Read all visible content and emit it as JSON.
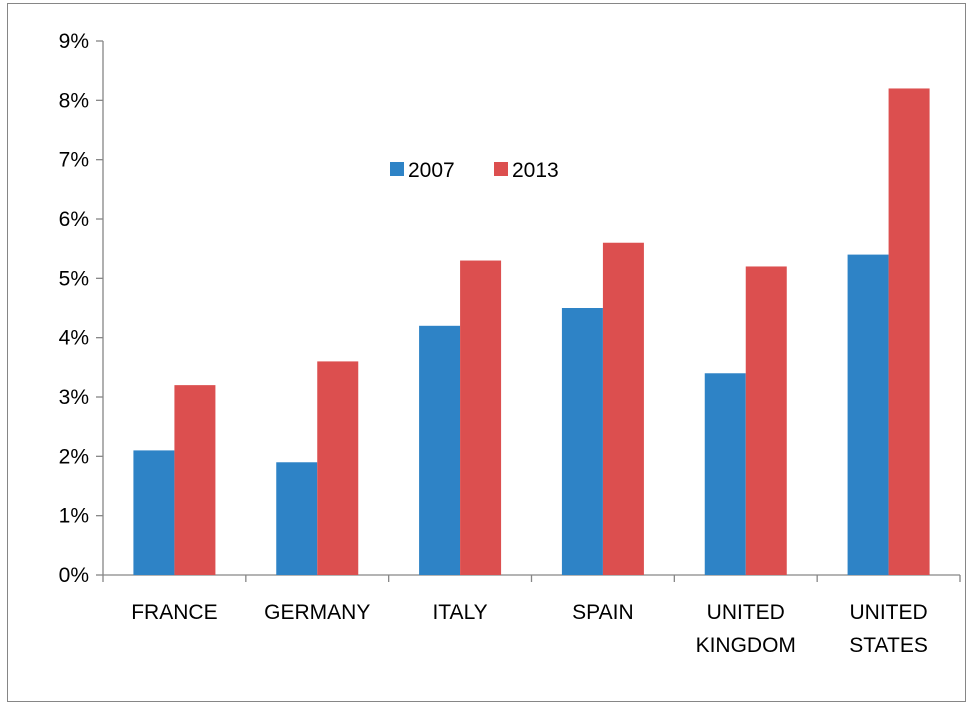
{
  "chart_data": {
    "type": "bar",
    "title": "",
    "xlabel": "",
    "ylabel": "",
    "categories": [
      [
        "FRANCE"
      ],
      [
        "GERMANY"
      ],
      [
        "ITALY"
      ],
      [
        "SPAIN"
      ],
      [
        "UNITED",
        "KINGDOM"
      ],
      [
        "UNITED",
        "STATES"
      ]
    ],
    "series": [
      {
        "name": "2007",
        "color": "#2e83c6",
        "values": [
          2.1,
          1.9,
          4.2,
          4.5,
          3.4,
          5.4
        ]
      },
      {
        "name": "2013",
        "color": "#dc4f4f",
        "values": [
          3.2,
          3.6,
          5.3,
          5.6,
          5.2,
          8.2
        ]
      }
    ],
    "ylim": [
      0,
      9
    ],
    "yticks": [
      0,
      1,
      2,
      3,
      4,
      5,
      6,
      7,
      8,
      9
    ],
    "ytick_format": "%",
    "grid": false,
    "legend_position": "top-center, inside plot"
  }
}
